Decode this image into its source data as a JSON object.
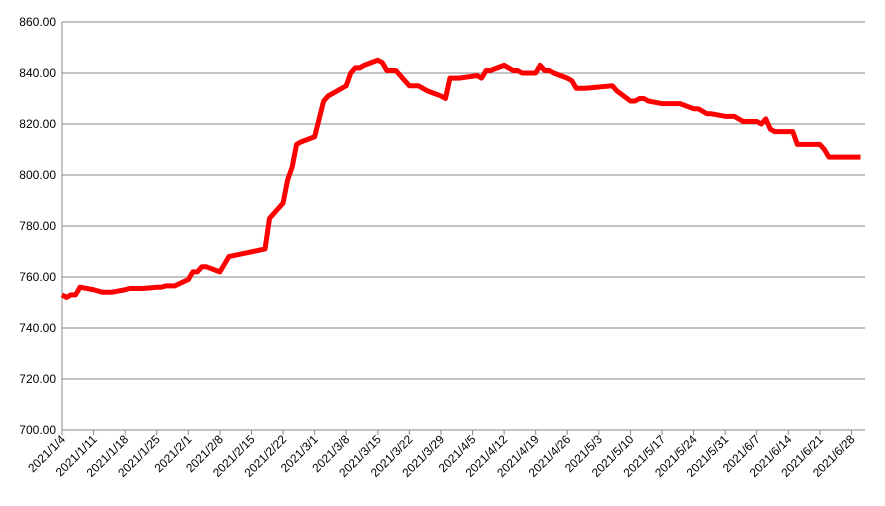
{
  "chart_data": {
    "type": "line",
    "color": "#ff0000",
    "grid": true,
    "x": [
      "2021/1/4",
      "2021/1/5",
      "2021/1/6",
      "2021/1/7",
      "2021/1/8",
      "2021/1/11",
      "2021/1/12",
      "2021/1/13",
      "2021/1/14",
      "2021/1/15",
      "2021/1/18",
      "2021/1/19",
      "2021/1/20",
      "2021/1/21",
      "2021/1/22",
      "2021/1/25",
      "2021/1/26",
      "2021/1/27",
      "2021/1/28",
      "2021/1/29",
      "2021/2/1",
      "2021/2/2",
      "2021/2/3",
      "2021/2/4",
      "2021/2/5",
      "2021/2/8",
      "2021/2/9",
      "2021/2/10",
      "2021/2/18",
      "2021/2/19",
      "2021/2/22",
      "2021/2/23",
      "2021/2/24",
      "2021/2/25",
      "2021/2/26",
      "2021/3/1",
      "2021/3/2",
      "2021/3/3",
      "2021/3/4",
      "2021/3/5",
      "2021/3/8",
      "2021/3/9",
      "2021/3/10",
      "2021/3/11",
      "2021/3/12",
      "2021/3/15",
      "2021/3/16",
      "2021/3/17",
      "2021/3/18",
      "2021/3/19",
      "2021/3/22",
      "2021/3/23",
      "2021/3/24",
      "2021/3/25",
      "2021/3/26",
      "2021/3/29",
      "2021/3/30",
      "2021/3/31",
      "2021/4/1",
      "2021/4/2",
      "2021/4/6",
      "2021/4/7",
      "2021/4/8",
      "2021/4/9",
      "2021/4/12",
      "2021/4/13",
      "2021/4/14",
      "2021/4/15",
      "2021/4/16",
      "2021/4/19",
      "2021/4/20",
      "2021/4/21",
      "2021/4/22",
      "2021/4/23",
      "2021/4/26",
      "2021/4/27",
      "2021/4/28",
      "2021/4/29",
      "2021/4/30",
      "2021/5/6",
      "2021/5/7",
      "2021/5/10",
      "2021/5/11",
      "2021/5/12",
      "2021/5/13",
      "2021/5/14",
      "2021/5/17",
      "2021/5/18",
      "2021/5/19",
      "2021/5/20",
      "2021/5/21",
      "2021/5/24",
      "2021/5/25",
      "2021/5/26",
      "2021/5/27",
      "2021/5/28",
      "2021/5/31",
      "2021/6/1",
      "2021/6/2",
      "2021/6/3",
      "2021/6/4",
      "2021/6/7",
      "2021/6/8",
      "2021/6/9",
      "2021/6/10",
      "2021/6/11",
      "2021/6/15",
      "2021/6/16",
      "2021/6/17",
      "2021/6/18",
      "2021/6/21",
      "2021/6/22",
      "2021/6/23",
      "2021/6/24",
      "2021/6/25",
      "2021/6/28",
      "2021/6/29",
      "2021/6/30"
    ],
    "values": [
      753,
      752,
      753,
      753,
      756,
      755,
      754.5,
      754,
      754,
      754,
      755,
      755.5,
      755.5,
      755.5,
      755.5,
      756,
      756,
      756.5,
      756.5,
      756.5,
      759,
      762,
      762,
      764,
      764,
      762,
      765,
      768,
      771,
      783,
      789,
      798,
      803,
      812,
      813,
      815,
      822,
      829,
      831,
      832,
      835,
      840,
      842,
      842,
      843,
      845,
      844,
      841,
      841,
      841,
      835,
      835,
      835,
      834,
      833,
      831,
      830,
      838,
      838,
      838,
      839,
      838,
      841,
      841,
      843,
      842,
      841,
      841,
      840,
      840,
      843,
      841,
      841,
      840,
      838,
      837,
      834,
      834,
      834,
      835,
      833,
      829,
      829,
      830,
      830,
      829,
      828,
      828,
      828,
      828,
      828,
      826,
      826,
      825,
      824,
      824,
      823,
      823,
      823,
      822,
      821,
      821,
      820,
      822,
      818,
      817,
      817,
      812,
      812,
      812,
      812,
      810,
      807,
      807,
      807,
      807,
      807,
      807
    ],
    "xlim": [
      "2021/1/4",
      "2021/7/1"
    ],
    "xticks": [
      "2021/1/4",
      "2021/1/11",
      "2021/1/18",
      "2021/1/25",
      "2021/2/1",
      "2021/2/8",
      "2021/2/15",
      "2021/2/22",
      "2021/3/1",
      "2021/3/8",
      "2021/3/15",
      "2021/3/22",
      "2021/3/29",
      "2021/4/5",
      "2021/4/12",
      "2021/4/19",
      "2021/4/26",
      "2021/5/3",
      "2021/5/10",
      "2021/5/17",
      "2021/5/24",
      "2021/5/31",
      "2021/6/7",
      "2021/6/14",
      "2021/6/21",
      "2021/6/28"
    ],
    "ylim": [
      700,
      860
    ],
    "yticks": [
      {
        "value": 700,
        "label": "700.00"
      },
      {
        "value": 720,
        "label": "720.00"
      },
      {
        "value": 740,
        "label": "740.00"
      },
      {
        "value": 760,
        "label": "760.00"
      },
      {
        "value": 780,
        "label": "780.00"
      },
      {
        "value": 800,
        "label": "800.00"
      },
      {
        "value": 820,
        "label": "820.00"
      },
      {
        "value": 840,
        "label": "840.00"
      },
      {
        "value": 860,
        "label": "860.00"
      }
    ]
  }
}
